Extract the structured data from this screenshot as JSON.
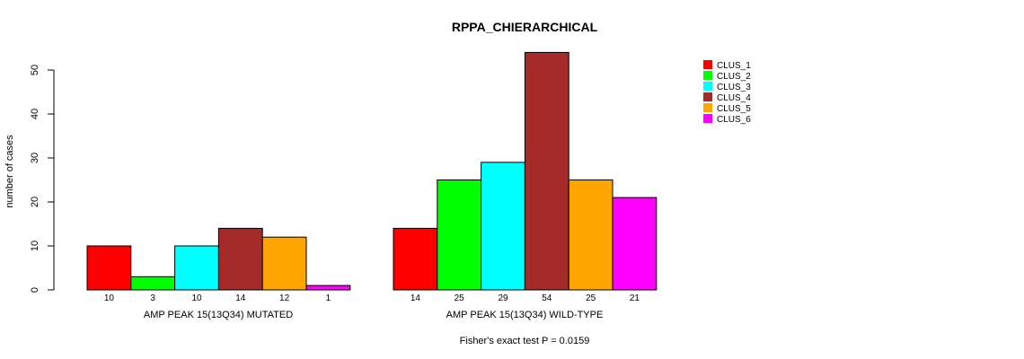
{
  "chart_data": {
    "type": "bar",
    "title": "RPPA_CHIERARCHICAL",
    "ylabel": "number of cases",
    "ylim": [
      0,
      50
    ],
    "yticks": [
      0,
      10,
      20,
      30,
      40,
      50
    ],
    "groups": [
      {
        "label": "AMP PEAK 15(13Q34) MUTATED",
        "values": [
          10,
          3,
          10,
          14,
          12,
          1
        ]
      },
      {
        "label": "AMP PEAK 15(13Q34) WILD-TYPE",
        "values": [
          14,
          25,
          29,
          54,
          25,
          21
        ]
      }
    ],
    "series": [
      {
        "name": "CLUS_1",
        "color": "#ff0000"
      },
      {
        "name": "CLUS_2",
        "color": "#00ff00"
      },
      {
        "name": "CLUS_3",
        "color": "#00ffff"
      },
      {
        "name": "CLUS_4",
        "color": "#a52a2a"
      },
      {
        "name": "CLUS_5",
        "color": "#ffa500"
      },
      {
        "name": "CLUS_6",
        "color": "#ff00ff"
      }
    ],
    "footnote": "Fisher's exact test P = 0.0159",
    "legend_position": "top-right"
  }
}
